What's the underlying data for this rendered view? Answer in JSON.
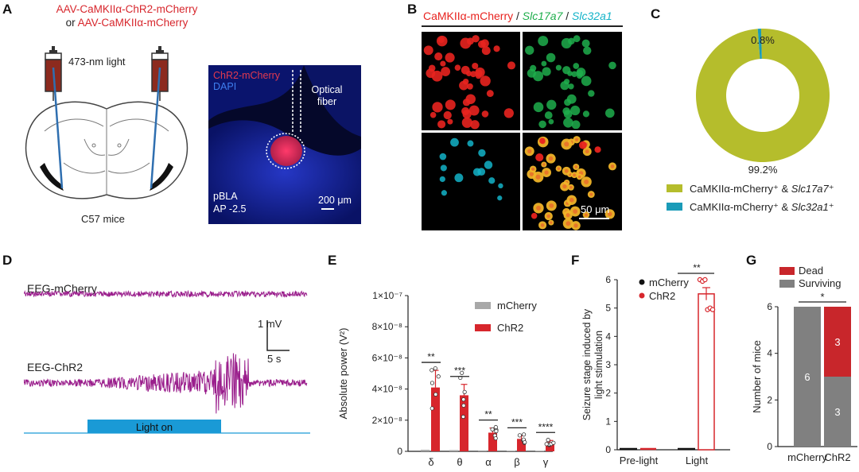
{
  "panels": {
    "a": "A",
    "b": "B",
    "c": "C",
    "d": "D",
    "e": "E",
    "f": "F",
    "g": "G"
  },
  "panel_a": {
    "virus_line1": "AAV-CaMKIIα-ChR2-mCherry",
    "or_word": "or",
    "virus_line2": "AAV-CaMKIIα-mCherry",
    "light": "473-nm light",
    "mouse": "C57 mice",
    "micro_chr2": "ChR2-mCherry",
    "micro_dapi": "DAPI",
    "fiber": "Optical fiber",
    "region": "pBLA",
    "ap": "AP -2.5",
    "scale": "200 μm",
    "colors": {
      "red": "#d7262c",
      "blue_stain": "#1a2bbd",
      "fiber_blue": "#2f6fb0",
      "syringe": "#8c2a1e"
    }
  },
  "panel_b": {
    "title_camk": "CaMKIIα-mCherry",
    "sep": " / ",
    "title_slc17": "Slc17a7",
    "title_slc32": "Slc32a1",
    "scale": "50 μm",
    "colors": {
      "red": "#e8231f",
      "green": "#1fae4c",
      "cyan": "#13b3c8"
    }
  },
  "chart_data": [
    {
      "panel": "C",
      "type": "pie",
      "categories": [
        "CaMKIIα-mCherry⁺ & Slc17a7⁺",
        "CaMKIIα-mCherry⁺ & Slc32a1⁺"
      ],
      "values": [
        99.2,
        0.8
      ],
      "value_labels": [
        "99.2%",
        "0.8%"
      ],
      "legend": [
        {
          "prefix": "CaMKIIα-mCherry⁺ & ",
          "gene": "Slc17a7",
          "sup": "⁺"
        },
        {
          "prefix": "CaMKIIα-mCherry⁺ & ",
          "gene": "Slc32a1",
          "sup": "⁺"
        }
      ],
      "colors": [
        "#b5bd2c",
        "#1a9bb8"
      ]
    },
    {
      "panel": "D",
      "type": "line",
      "trace1_label": "EEG-mCherry",
      "trace2_label": "EEG-ChR2",
      "scale_v": "1 mV",
      "scale_t": "5 s",
      "light_label": "Light on",
      "colors": {
        "trace": "#9a1e8c",
        "light": "#1a9ad6"
      }
    },
    {
      "panel": "E",
      "type": "bar",
      "title": "",
      "ylabel": "Absolute power (V²)",
      "ylim": [
        0,
        1e-07
      ],
      "yticks": [
        0,
        2e-08,
        4e-08,
        6e-08,
        8e-08,
        1e-07
      ],
      "ytick_labels": [
        "0",
        "2×10⁻⁸",
        "4×10⁻⁸",
        "6×10⁻⁸",
        "8×10⁻⁸",
        "1×10⁻⁷"
      ],
      "categories": [
        "δ",
        "θ",
        "α",
        "β",
        "γ"
      ],
      "series": [
        {
          "name": "mCherry",
          "values": [
            1e-09,
            8e-10,
            6e-10,
            4e-10,
            3e-10
          ],
          "color": "#a8a8a8"
        },
        {
          "name": "ChR2",
          "values": [
            4.1e-08,
            3.6e-08,
            1.2e-08,
            8e-09,
            6e-09
          ],
          "errors": [
            1.1e-08,
            7e-09,
            3e-09,
            2e-09,
            1e-09
          ],
          "color": "#d7262c"
        }
      ],
      "significance": [
        "**",
        "***",
        "**",
        "***",
        "****"
      ]
    },
    {
      "panel": "F",
      "type": "bar",
      "ylabel_lines": [
        "Seizure stage induced by",
        "light stimulation"
      ],
      "ylim": [
        0,
        6
      ],
      "yticks": [
        0,
        1,
        2,
        3,
        4,
        5,
        6
      ],
      "categories": [
        "Pre-light",
        "Light"
      ],
      "series": [
        {
          "name": "mCherry",
          "values": [
            0,
            0
          ],
          "color": "#111111"
        },
        {
          "name": "ChR2",
          "values": [
            0,
            5.5
          ],
          "errors": [
            0,
            0.22
          ],
          "color": "#d7262c"
        }
      ],
      "significance": "**"
    },
    {
      "panel": "G",
      "type": "bar",
      "stacked": true,
      "ylabel": "Number of mice",
      "ylim": [
        0,
        6
      ],
      "yticks": [
        0,
        2,
        4,
        6
      ],
      "categories": [
        "mCherry",
        "ChR2"
      ],
      "series": [
        {
          "name": "Surviving",
          "values": [
            6,
            3
          ],
          "color": "#808080"
        },
        {
          "name": "Dead",
          "values": [
            0,
            3
          ],
          "color": "#c8262b"
        }
      ],
      "value_labels": [
        [
          "6",
          ""
        ],
        [
          "3",
          "3"
        ]
      ],
      "significance": "*"
    }
  ]
}
